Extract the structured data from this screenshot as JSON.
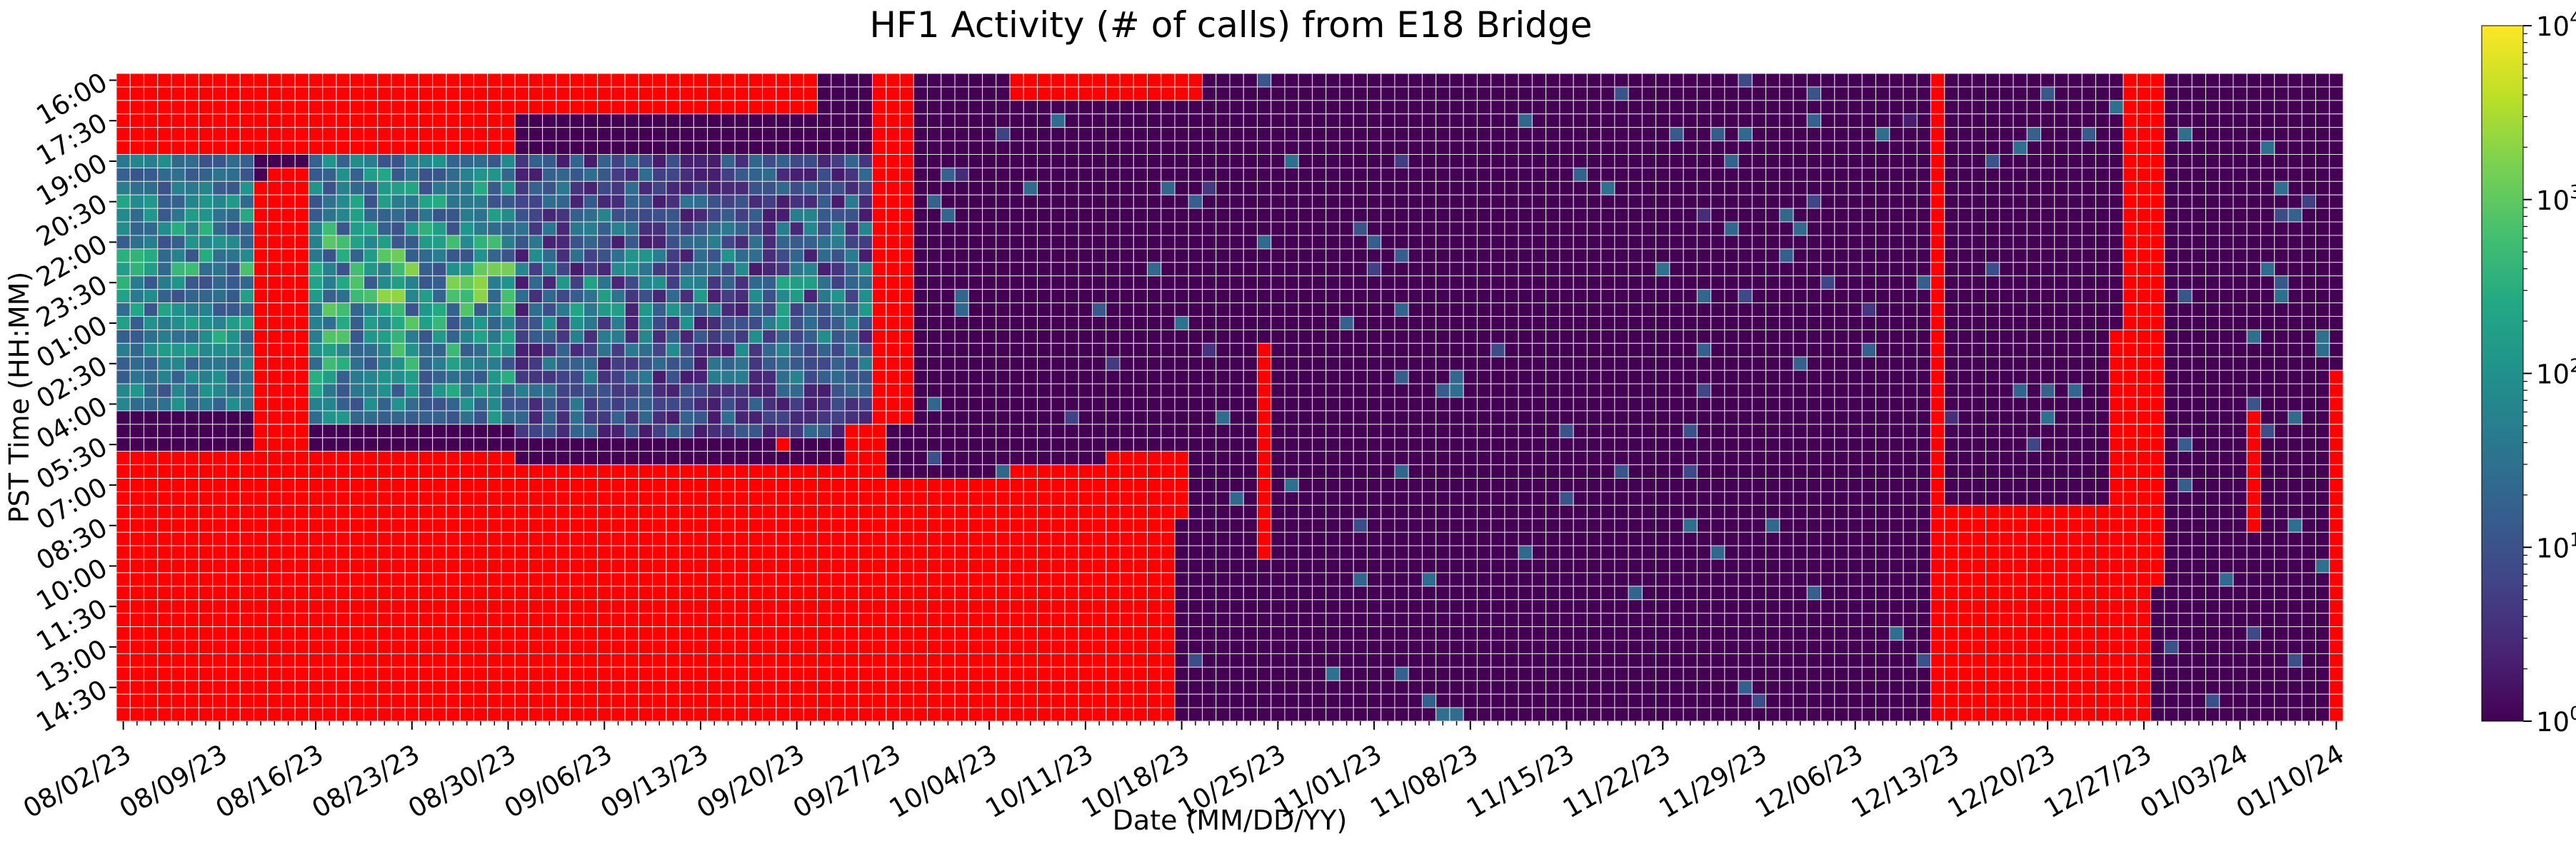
{
  "chart_data": {
    "type": "heatmap",
    "title": "HF1 Activity (# of calls) from E18 Bridge",
    "xlabel": "Date (MM/DD/YY)",
    "ylabel": "PST Time (HH:MM)",
    "x_start_date": "08/02/23",
    "x_end_date": "01/10/24",
    "x_tick_labels": [
      "08/02/23",
      "08/09/23",
      "08/16/23",
      "08/23/23",
      "08/30/23",
      "09/06/23",
      "09/13/23",
      "09/20/23",
      "09/27/23",
      "10/04/23",
      "10/11/23",
      "10/18/23",
      "10/25/23",
      "11/01/23",
      "11/08/23",
      "11/15/23",
      "11/22/23",
      "11/29/23",
      "12/06/23",
      "12/13/23",
      "12/20/23",
      "12/27/23",
      "01/03/24",
      "01/10/24"
    ],
    "y_tick_labels": [
      "16:00",
      "17:30",
      "19:00",
      "20:30",
      "22:00",
      "23:30",
      "01:00",
      "02:30",
      "04:00",
      "05:30",
      "07:00",
      "08:30",
      "10:00",
      "11:30",
      "13:00",
      "14:30"
    ],
    "y_start_time": "16:00",
    "y_end_time": "15:30",
    "y_step_minutes": 30,
    "colorbar": {
      "scale": "log",
      "colormap": "viridis",
      "range": [
        1,
        10000
      ],
      "tick_base": "10",
      "tick_exponents": [
        "0",
        "1",
        "2",
        "3",
        "4"
      ]
    },
    "missing_data_color": "#ff0000",
    "grid_color": "#e6e6e6",
    "missing_data_blocks": [
      {
        "from": "08/02/23",
        "to": "08/15/23",
        "rows": [
          "16:00",
          "18:30"
        ]
      },
      {
        "from": "08/16/23",
        "to": "08/30/23",
        "rows": [
          "16:00",
          "18:30"
        ]
      },
      {
        "from": "08/31/23",
        "to": "09/21/23",
        "rows": [
          "16:00",
          "17:00"
        ]
      },
      {
        "from": "09/26/23",
        "to": "09/28/23",
        "rows": [
          "16:00",
          "17:30"
        ]
      },
      {
        "from": "10/06/23",
        "to": "10/19/23",
        "rows": [
          "16:00",
          "16:30"
        ]
      },
      {
        "from": "08/02/23",
        "to": "08/15/23",
        "rows": [
          "06:00",
          "15:30"
        ]
      },
      {
        "from": "08/13/23",
        "to": "08/15/23",
        "rows": [
          "19:30",
          "05:30"
        ]
      },
      {
        "from": "08/12/23",
        "to": "08/12/23",
        "rows": [
          "20:00",
          "05:30"
        ]
      },
      {
        "from": "08/16/23",
        "to": "08/30/23",
        "rows": [
          "06:00",
          "15:30"
        ]
      },
      {
        "from": "08/31/23",
        "to": "09/23/23",
        "rows": [
          "06:30",
          "15:30"
        ]
      },
      {
        "from": "09/24/23",
        "to": "09/27/23",
        "rows": [
          "07:00",
          "15:30"
        ]
      },
      {
        "from": "09/24/23",
        "to": "09/26/23",
        "rows": [
          "05:00",
          "06:30"
        ]
      },
      {
        "from": "09/26/23",
        "to": "09/28/23",
        "rows": [
          "18:00",
          "04:30"
        ]
      },
      {
        "from": "09/28/23",
        "to": "10/05/23",
        "rows": [
          "07:00",
          "15:30"
        ]
      },
      {
        "from": "10/06/23",
        "to": "10/17/23",
        "rows": [
          "06:30",
          "15:30"
        ]
      },
      {
        "from": "10/13/23",
        "to": "10/17/23",
        "rows": [
          "06:00",
          "06:00"
        ]
      },
      {
        "from": "10/18/23",
        "to": "10/18/23",
        "rows": [
          "06:00",
          "08:00"
        ]
      },
      {
        "from": "09/19/23",
        "to": "09/19/23",
        "rows": [
          "05:30",
          "05:30"
        ]
      },
      {
        "from": "10/24/23",
        "to": "10/24/23",
        "rows": [
          "02:00",
          "09:30"
        ]
      },
      {
        "from": "12/12/23",
        "to": "12/12/23",
        "rows": [
          "16:00",
          "07:30"
        ]
      },
      {
        "from": "12/12/23",
        "to": "12/24/23",
        "rows": [
          "08:00",
          "15:30"
        ]
      },
      {
        "from": "12/25/23",
        "to": "12/25/23",
        "rows": [
          "01:30",
          "15:30"
        ]
      },
      {
        "from": "12/26/23",
        "to": "12/28/23",
        "rows": [
          "16:00",
          "10:30"
        ]
      },
      {
        "from": "12/26/23",
        "to": "12/27/23",
        "rows": [
          "11:00",
          "15:30"
        ]
      },
      {
        "from": "01/04/24",
        "to": "01/04/24",
        "rows": [
          "04:30",
          "08:30"
        ]
      },
      {
        "from": "01/10/24",
        "to": "01/10/24",
        "rows": [
          "03:00",
          "15:30"
        ]
      }
    ],
    "activity_summary": [
      {
        "period": "08/02/23–08/11/23",
        "hours": "19:00–04:00",
        "typical_calls": "10–1000"
      },
      {
        "period": "08/16/23–08/30/23",
        "hours": "19:00–04:30",
        "typical_calls": "10–3000"
      },
      {
        "period": "08/31/23–09/25/23",
        "hours": "19:00–05:00",
        "typical_calls": "2–300"
      },
      {
        "period": "09/28/23–01/10/24",
        "hours": "all",
        "typical_calls": "1–100 (mostly 1)"
      }
    ]
  }
}
